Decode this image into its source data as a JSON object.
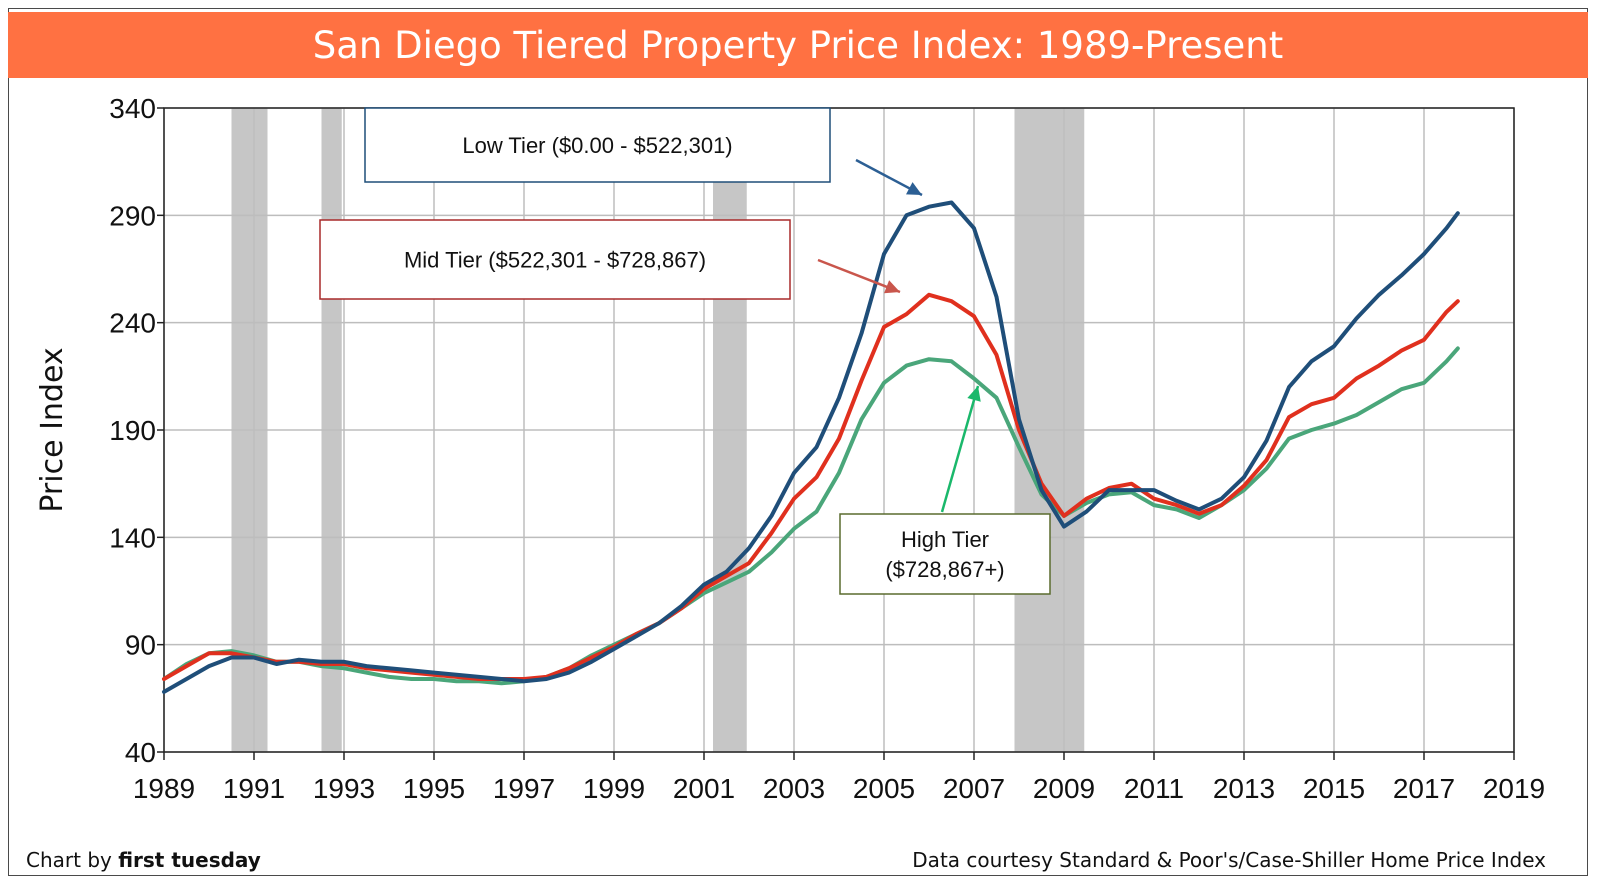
{
  "chart_data": {
    "type": "line",
    "title": "San Diego Tiered Property Price Index: 1989-Present",
    "xlabel": "",
    "ylabel": "Price Index",
    "xlim": [
      1989,
      2019
    ],
    "ylim": [
      40,
      340
    ],
    "x_ticks": [
      "1989",
      "1991",
      "1993",
      "1995",
      "1997",
      "1999",
      "2001",
      "2003",
      "2005",
      "2007",
      "2009",
      "2011",
      "2013",
      "2015",
      "2017",
      "2019"
    ],
    "y_ticks": [
      "40",
      "90",
      "140",
      "190",
      "240",
      "290",
      "340"
    ],
    "grid": true,
    "recessions": [
      [
        1990.5,
        1991.3
      ],
      [
        1992.5,
        1992.95
      ],
      [
        2001.2,
        2001.95
      ],
      [
        2007.9,
        2009.45
      ]
    ],
    "x": [
      1989.0,
      1989.5,
      1990.0,
      1990.5,
      1991.0,
      1991.5,
      1992.0,
      1992.5,
      1993.0,
      1993.5,
      1994.0,
      1994.5,
      1995.0,
      1995.5,
      1996.0,
      1996.5,
      1997.0,
      1997.5,
      1998.0,
      1998.5,
      1999.0,
      1999.5,
      2000.0,
      2000.5,
      2001.0,
      2001.5,
      2002.0,
      2002.5,
      2003.0,
      2003.5,
      2004.0,
      2004.5,
      2005.0,
      2005.5,
      2006.0,
      2006.5,
      2007.0,
      2007.5,
      2008.0,
      2008.5,
      2009.0,
      2009.5,
      2010.0,
      2010.5,
      2011.0,
      2011.5,
      2012.0,
      2012.5,
      2013.0,
      2013.5,
      2014.0,
      2014.5,
      2015.0,
      2015.5,
      2016.0,
      2016.5,
      2017.0,
      2017.5,
      2017.75
    ],
    "series": [
      {
        "name": "Low Tier ($0.00 - $522,301)",
        "color": "#1f4e79",
        "values": [
          68,
          74,
          80,
          84,
          84,
          81,
          83,
          82,
          82,
          80,
          79,
          78,
          77,
          76,
          75,
          74,
          73,
          74,
          77,
          82,
          88,
          94,
          100,
          108,
          118,
          124,
          135,
          150,
          170,
          182,
          205,
          235,
          272,
          290,
          294,
          296,
          284,
          252,
          195,
          162,
          145,
          152,
          162,
          162,
          162,
          157,
          153,
          158,
          168,
          185,
          210,
          222,
          229,
          242,
          253,
          262,
          272,
          284,
          291
        ]
      },
      {
        "name": "Mid Tier ($522,301 - $728,867)",
        "color": "#e0301e",
        "values": [
          74,
          80,
          86,
          86,
          84,
          82,
          82,
          81,
          81,
          79,
          78,
          77,
          76,
          75,
          74,
          74,
          74,
          75,
          79,
          84,
          89,
          95,
          100,
          107,
          116,
          122,
          128,
          142,
          158,
          168,
          186,
          213,
          238,
          244,
          253,
          250,
          243,
          225,
          190,
          165,
          150,
          158,
          163,
          165,
          158,
          155,
          151,
          155,
          164,
          176,
          196,
          202,
          205,
          214,
          220,
          227,
          232,
          245,
          250
        ]
      },
      {
        "name": "High Tier ($728,867+)",
        "color": "#4aa67a",
        "values": [
          74,
          81,
          86,
          87,
          85,
          82,
          82,
          80,
          79,
          77,
          75,
          74,
          74,
          73,
          73,
          72,
          73,
          75,
          79,
          85,
          90,
          95,
          100,
          107,
          114,
          119,
          124,
          133,
          144,
          152,
          170,
          195,
          212,
          220,
          223,
          222,
          214,
          205,
          182,
          160,
          150,
          156,
          160,
          161,
          155,
          153,
          149,
          155,
          162,
          172,
          186,
          190,
          193,
          197,
          203,
          209,
          212,
          222,
          228
        ]
      }
    ],
    "annotations": [
      {
        "lines": [
          "Low Tier ($0.00 - $522,301)"
        ],
        "border": "#1f4e79",
        "arrow_color": "#2c5f94"
      },
      {
        "lines": [
          "Mid Tier ($522,301 - $728,867)"
        ],
        "border": "#a82a2a",
        "arrow_color": "#c9564c"
      },
      {
        "lines": [
          "High Tier",
          "($728,867+)"
        ],
        "border": "#5a6b2e",
        "arrow_color": "#1ab86b"
      }
    ]
  },
  "footer": {
    "credit_left_prefix": "Chart by ",
    "credit_left_brand": "first tuesday",
    "credit_right": "Data courtesy Standard & Poor's/Case-Shiller Home Price Index"
  }
}
